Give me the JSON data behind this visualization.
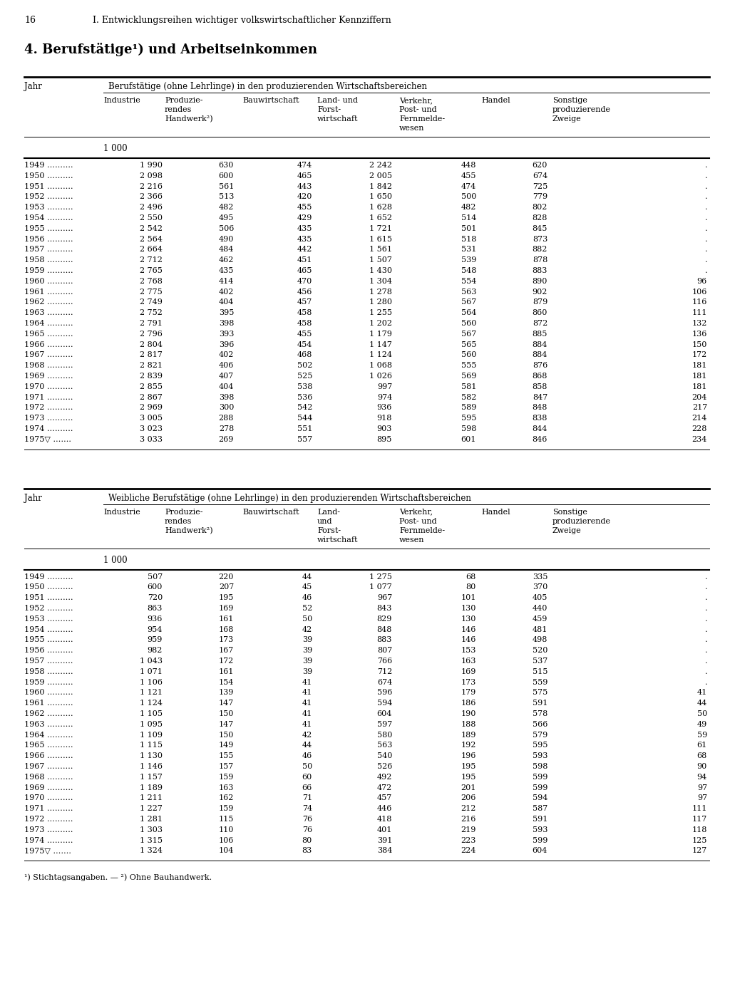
{
  "page_num": "16",
  "chapter": "I. Entwicklungsreihen wichtiger volkswirtschaftlicher Kennziffern",
  "section_title": "4. Berufstätige¹) und Arbeitseinkommen",
  "table1_header_main": "Berufstätige (ohne Lehrlinge) in den produzierenden Wirtschaftsbereichen",
  "table2_header_main": "Weibliche Berufstätige (ohne Lehrlinge) in den produzierenden Wirtschaftsbereichen",
  "col_jahr": "Jahr",
  "col_industrie": "Industrie",
  "col_handwerk_t1": "Produzie-\nrendes\nHandwerk²)",
  "col_bau": "Bauwirtschaft",
  "col_land_t1": "Land- und\nForst-\nwirtschaft",
  "col_verkehr_t1": "Verkehr,\nPost- und\nFernmelde-\nwesen",
  "col_handel": "Handel",
  "col_sonstige": "Sonstige\nproduzierende\nZweige",
  "col_land_t2": "Land-\nund\nForst-\nwirtschaft",
  "col_verkehr_t2": "Verkehr,\nPost- und\nFernmelde-\nwesen",
  "unit": "1 000",
  "table1_data": [
    [
      "1949 ……….",
      "1 990",
      "630",
      "474",
      "2 242",
      "448",
      "620",
      "."
    ],
    [
      "1950 ……….",
      "2 098",
      "600",
      "465",
      "2 005",
      "455",
      "674",
      "."
    ],
    [
      "1951 ……….",
      "2 216",
      "561",
      "443",
      "1 842",
      "474",
      "725",
      "."
    ],
    [
      "1952 ……….",
      "2 366",
      "513",
      "420",
      "1 650",
      "500",
      "779",
      "."
    ],
    [
      "1953 ……….",
      "2 496",
      "482",
      "455",
      "1 628",
      "482",
      "802",
      "."
    ],
    [
      "1954 ……….",
      "2 550",
      "495",
      "429",
      "1 652",
      "514",
      "828",
      "."
    ],
    [
      "1955 ……….",
      "2 542",
      "506",
      "435",
      "1 721",
      "501",
      "845",
      "."
    ],
    [
      "1956 ……….",
      "2 564",
      "490",
      "435",
      "1 615",
      "518",
      "873",
      "."
    ],
    [
      "1957 ……….",
      "2 664",
      "484",
      "442",
      "1 561",
      "531",
      "882",
      "."
    ],
    [
      "1958 ……….",
      "2 712",
      "462",
      "451",
      "1 507",
      "539",
      "878",
      "."
    ],
    [
      "1959 ……….",
      "2 765",
      "435",
      "465",
      "1 430",
      "548",
      "883",
      "."
    ],
    [
      "1960 ……….",
      "2 768",
      "414",
      "470",
      "1 304",
      "554",
      "890",
      "96"
    ],
    [
      "1961 ……….",
      "2 775",
      "402",
      "456",
      "1 278",
      "563",
      "902",
      "106"
    ],
    [
      "1962 ……….",
      "2 749",
      "404",
      "457",
      "1 280",
      "567",
      "879",
      "116"
    ],
    [
      "1963 ……….",
      "2 752",
      "395",
      "458",
      "1 255",
      "564",
      "860",
      "111"
    ],
    [
      "1964 ……….",
      "2 791",
      "398",
      "458",
      "1 202",
      "560",
      "872",
      "132"
    ],
    [
      "1965 ……….",
      "2 796",
      "393",
      "455",
      "1 179",
      "567",
      "885",
      "136"
    ],
    [
      "1966 ……….",
      "2 804",
      "396",
      "454",
      "1 147",
      "565",
      "884",
      "150"
    ],
    [
      "1967 ……….",
      "2 817",
      "402",
      "468",
      "1 124",
      "560",
      "884",
      "172"
    ],
    [
      "1968 ……….",
      "2 821",
      "406",
      "502",
      "1 068",
      "555",
      "876",
      "181"
    ],
    [
      "1969 ……….",
      "2 839",
      "407",
      "525",
      "1 026",
      "569",
      "868",
      "181"
    ],
    [
      "1970 ……….",
      "2 855",
      "404",
      "538",
      "997",
      "581",
      "858",
      "181"
    ],
    [
      "1971 ……….",
      "2 867",
      "398",
      "536",
      "974",
      "582",
      "847",
      "204"
    ],
    [
      "1972 ……….",
      "2 969",
      "300",
      "542",
      "936",
      "589",
      "848",
      "217"
    ],
    [
      "1973 ……….",
      "3 005",
      "288",
      "544",
      "918",
      "595",
      "838",
      "214"
    ],
    [
      "1974 ……….",
      "3 023",
      "278",
      "551",
      "903",
      "598",
      "844",
      "228"
    ],
    [
      "1975▽ …….",
      "3 033",
      "269",
      "557",
      "895",
      "601",
      "846",
      "234"
    ]
  ],
  "table2_data": [
    [
      "1949 ……….",
      "507",
      "220",
      "44",
      "1 275",
      "68",
      "335",
      "."
    ],
    [
      "1950 ……….",
      "600",
      "207",
      "45",
      "1 077",
      "80",
      "370",
      "."
    ],
    [
      "1951 ……….",
      "720",
      "195",
      "46",
      "967",
      "101",
      "405",
      "."
    ],
    [
      "1952 ……….",
      "863",
      "169",
      "52",
      "843",
      "130",
      "440",
      "."
    ],
    [
      "1953 ……….",
      "936",
      "161",
      "50",
      "829",
      "130",
      "459",
      "."
    ],
    [
      "1954 ……….",
      "954",
      "168",
      "42",
      "848",
      "146",
      "481",
      "."
    ],
    [
      "1955 ……….",
      "959",
      "173",
      "39",
      "883",
      "146",
      "498",
      "."
    ],
    [
      "1956 ……….",
      "982",
      "167",
      "39",
      "807",
      "153",
      "520",
      "."
    ],
    [
      "1957 ……….",
      "1 043",
      "172",
      "39",
      "766",
      "163",
      "537",
      "."
    ],
    [
      "1958 ……….",
      "1 071",
      "161",
      "39",
      "712",
      "169",
      "515",
      "."
    ],
    [
      "1959 ……….",
      "1 106",
      "154",
      "41",
      "674",
      "173",
      "559",
      "."
    ],
    [
      "1960 ……….",
      "1 121",
      "139",
      "41",
      "596",
      "179",
      "575",
      "41"
    ],
    [
      "1961 ……….",
      "1 124",
      "147",
      "41",
      "594",
      "186",
      "591",
      "44"
    ],
    [
      "1962 ……….",
      "1 105",
      "150",
      "41",
      "604",
      "190",
      "578",
      "50"
    ],
    [
      "1963 ……….",
      "1 095",
      "147",
      "41",
      "597",
      "188",
      "566",
      "49"
    ],
    [
      "1964 ……….",
      "1 109",
      "150",
      "42",
      "580",
      "189",
      "579",
      "59"
    ],
    [
      "1965 ……….",
      "1 115",
      "149",
      "44",
      "563",
      "192",
      "595",
      "61"
    ],
    [
      "1966 ……….",
      "1 130",
      "155",
      "46",
      "540",
      "196",
      "593",
      "68"
    ],
    [
      "1967 ……….",
      "1 146",
      "157",
      "50",
      "526",
      "195",
      "598",
      "90"
    ],
    [
      "1968 ……….",
      "1 157",
      "159",
      "60",
      "492",
      "195",
      "599",
      "94"
    ],
    [
      "1969 ……….",
      "1 189",
      "163",
      "66",
      "472",
      "201",
      "599",
      "97"
    ],
    [
      "1970 ……….",
      "1 211",
      "162",
      "71",
      "457",
      "206",
      "594",
      "97"
    ],
    [
      "1971 ……….",
      "1 227",
      "159",
      "74",
      "446",
      "212",
      "587",
      "111"
    ],
    [
      "1972 ……….",
      "1 281",
      "115",
      "76",
      "418",
      "216",
      "591",
      "117"
    ],
    [
      "1973 ……….",
      "1 303",
      "110",
      "76",
      "401",
      "219",
      "593",
      "118"
    ],
    [
      "1974 ……….",
      "1 315",
      "106",
      "80",
      "391",
      "223",
      "599",
      "125"
    ],
    [
      "1975▽ …….",
      "1 324",
      "104",
      "83",
      "384",
      "224",
      "604",
      "127"
    ]
  ],
  "footnote1": "¹) Stichtagsangaben. — ²) Ohne Bauhandwerk."
}
